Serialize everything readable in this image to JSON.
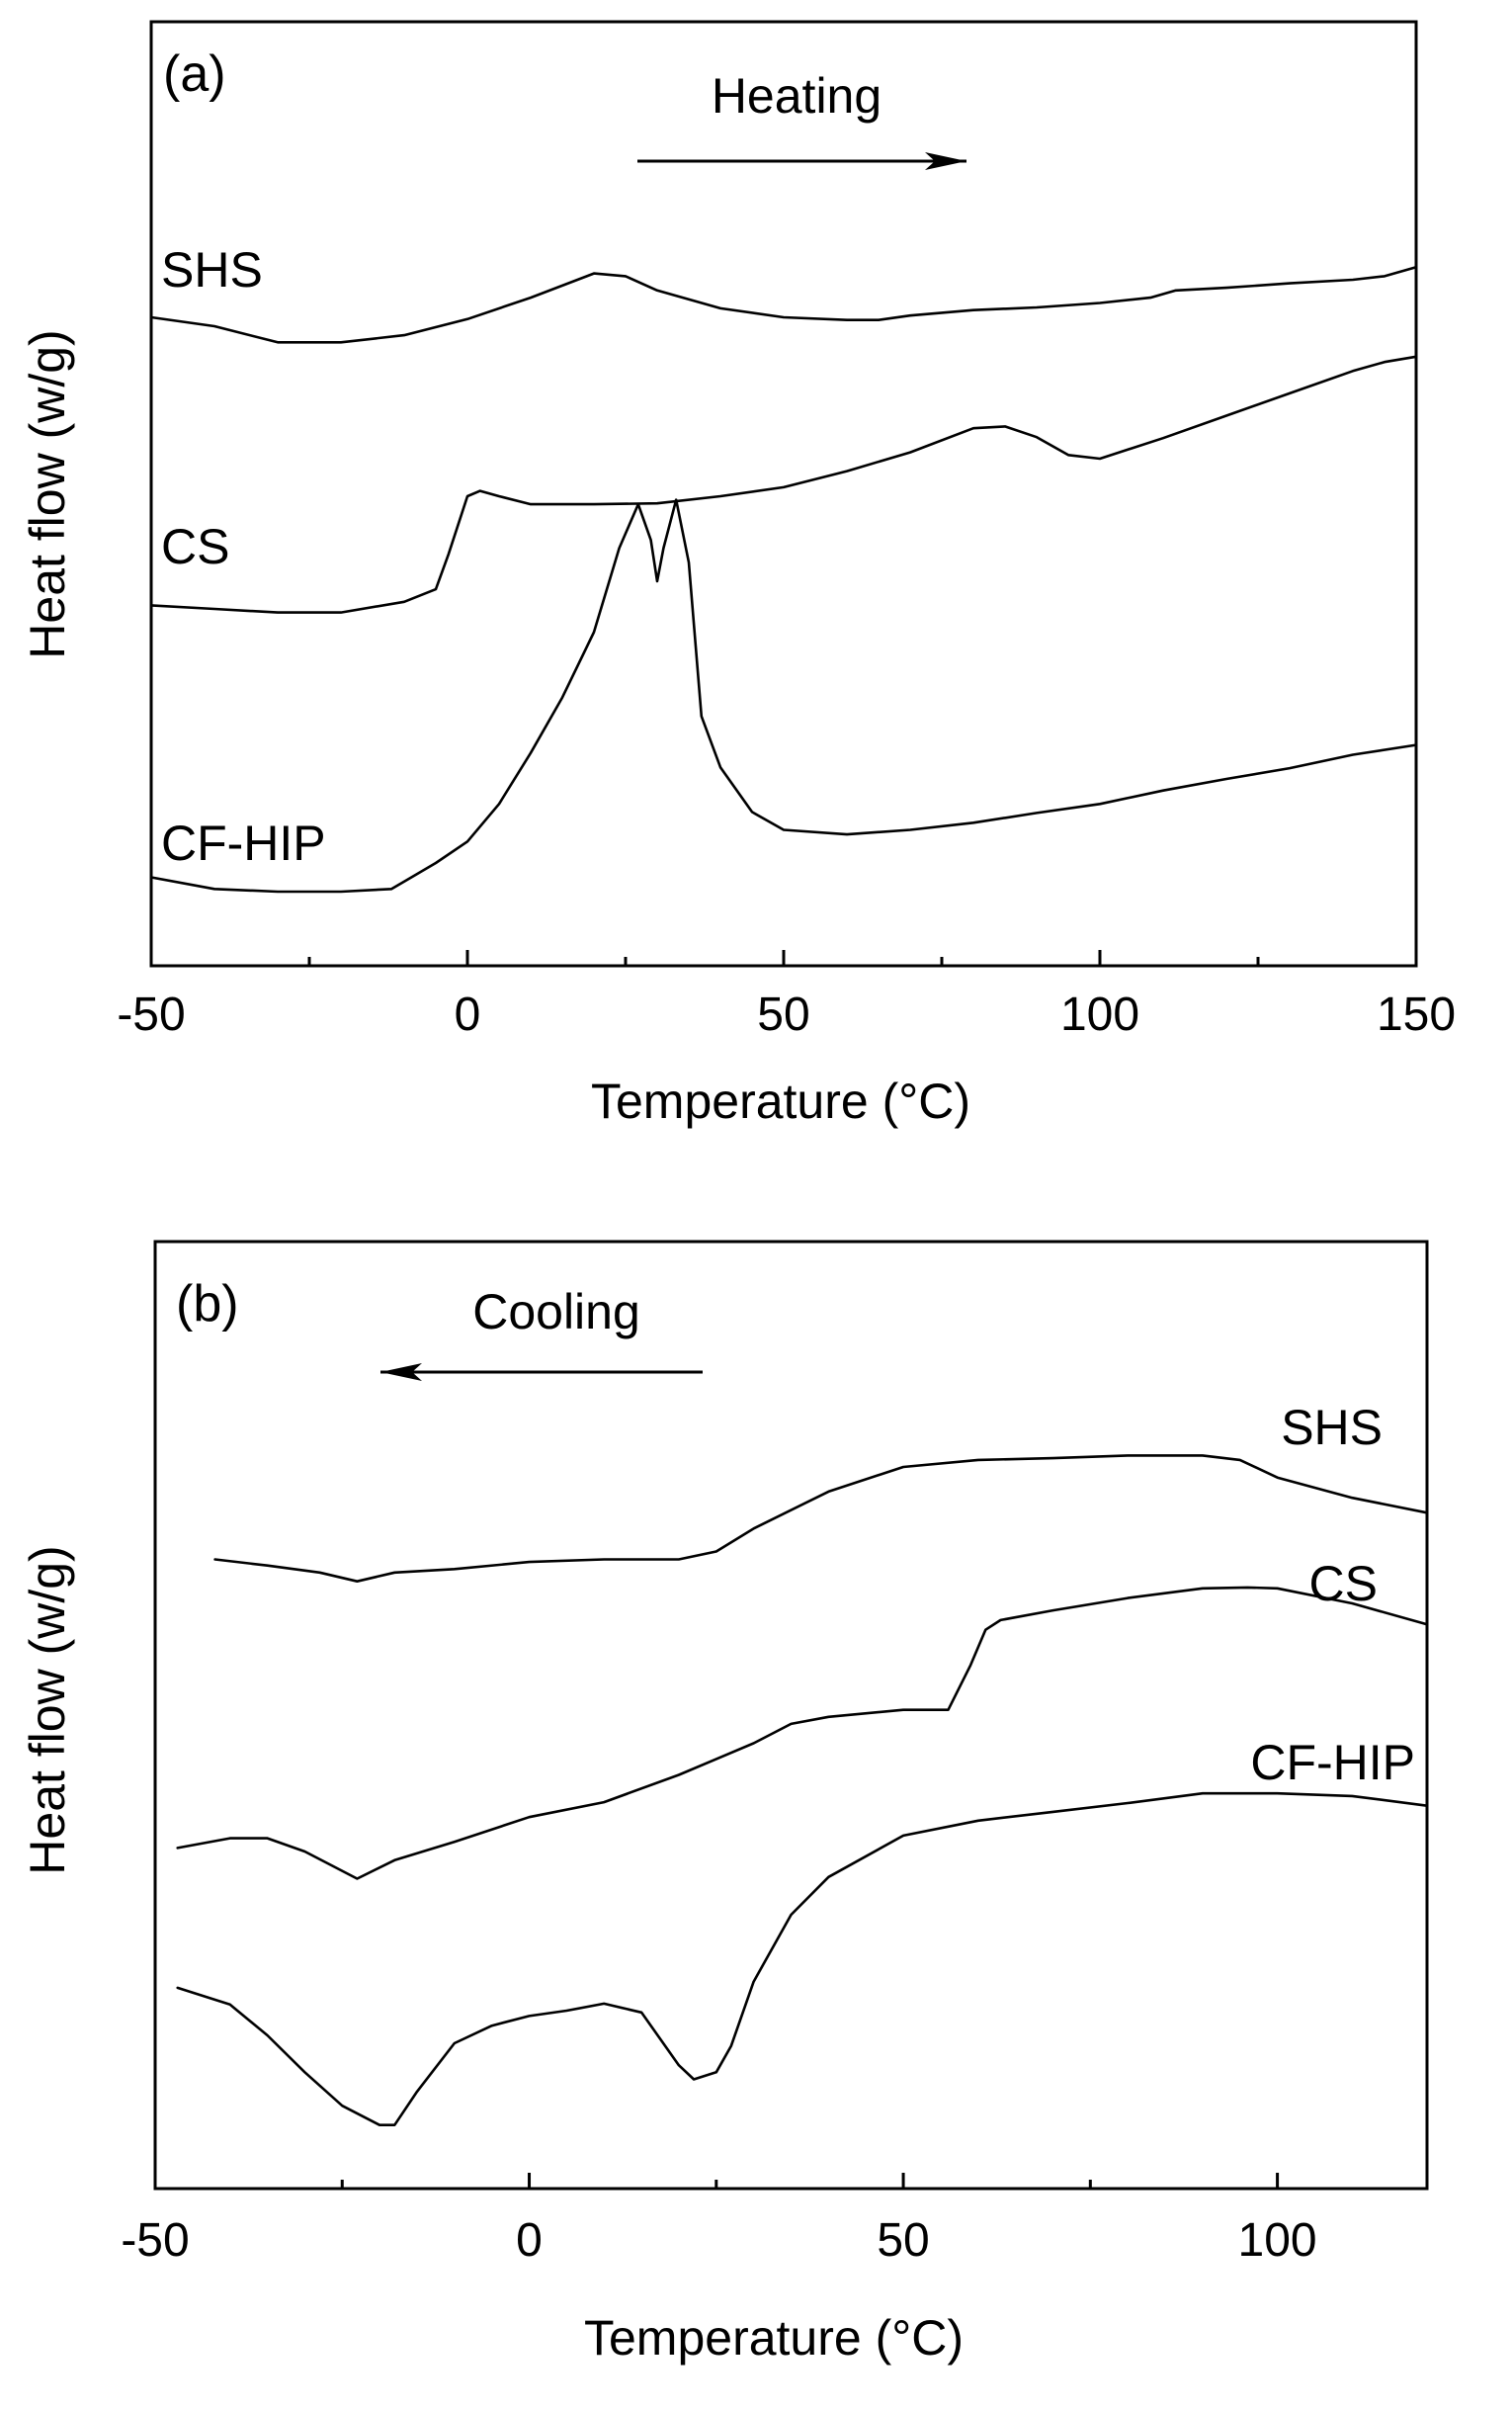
{
  "chart_data": [
    {
      "type": "line",
      "panel": "(a)",
      "direction": {
        "label": "Heating",
        "arrow": "right"
      },
      "xlabel": "Temperature (°C)",
      "ylabel": "Heat flow (w/g)",
      "xlim": [
        -50,
        150
      ],
      "ylim": [
        0,
        1
      ],
      "xticks": [
        -50,
        0,
        50,
        100,
        150
      ],
      "yticks_shown": false,
      "series": [
        {
          "name": "SHS",
          "label": "SHS",
          "x": [
            -50,
            -40,
            -30,
            -20,
            -10,
            0,
            10,
            20,
            25,
            30,
            40,
            50,
            60,
            65,
            70,
            80,
            90,
            100,
            108,
            112,
            120,
            130,
            140,
            145,
            150
          ],
          "y": [
            0.684,
            0.674,
            0.656,
            0.656,
            0.664,
            0.682,
            0.706,
            0.733,
            0.73,
            0.714,
            0.694,
            0.684,
            0.681,
            0.681,
            0.686,
            0.692,
            0.695,
            0.7,
            0.706,
            0.714,
            0.717,
            0.722,
            0.726,
            0.73,
            0.74
          ]
        },
        {
          "name": "CS",
          "label": "CS",
          "x": [
            -50,
            -40,
            -30,
            -20,
            -10,
            -5,
            -3,
            0,
            2,
            5,
            10,
            20,
            30,
            40,
            50,
            60,
            70,
            80,
            85,
            90,
            95,
            100,
            110,
            120,
            130,
            140,
            145,
            150
          ],
          "y": [
            0.362,
            0.358,
            0.354,
            0.354,
            0.366,
            0.38,
            0.419,
            0.484,
            0.49,
            0.484,
            0.475,
            0.475,
            0.476,
            0.484,
            0.494,
            0.512,
            0.533,
            0.56,
            0.562,
            0.55,
            0.53,
            0.526,
            0.549,
            0.574,
            0.599,
            0.624,
            0.634,
            0.64
          ]
        },
        {
          "name": "CF-HIP",
          "label": "CF-HIP",
          "x": [
            -50,
            -40,
            -30,
            -20,
            -12,
            -5,
            0,
            5,
            10,
            15,
            20,
            24,
            27,
            29,
            30,
            31,
            33,
            35,
            37,
            40,
            45,
            50,
            60,
            70,
            80,
            90,
            100,
            110,
            120,
            130,
            140,
            150
          ],
          "y": [
            0.058,
            0.045,
            0.042,
            0.042,
            0.045,
            0.074,
            0.098,
            0.14,
            0.197,
            0.259,
            0.332,
            0.426,
            0.475,
            0.435,
            0.389,
            0.426,
            0.48,
            0.41,
            0.238,
            0.181,
            0.131,
            0.111,
            0.106,
            0.111,
            0.119,
            0.13,
            0.14,
            0.155,
            0.168,
            0.18,
            0.195,
            0.206
          ]
        }
      ]
    },
    {
      "type": "line",
      "panel": "(b)",
      "direction": {
        "label": "Cooling",
        "arrow": "left"
      },
      "xlabel": "Temperature (°C)",
      "ylabel": "Heat flow (w/g)",
      "xlim": [
        -50,
        120
      ],
      "ylim": [
        0,
        1
      ],
      "xticks": [
        -50,
        0,
        50,
        100
      ],
      "yticks_shown": false,
      "series": [
        {
          "name": "SHS",
          "label": "SHS",
          "x": [
            -42,
            -35,
            -28,
            -23,
            -18,
            -10,
            0,
            10,
            20,
            25,
            30,
            40,
            50,
            60,
            70,
            80,
            90,
            95,
            100,
            110,
            120
          ],
          "y": [
            0.677,
            0.67,
            0.662,
            0.652,
            0.662,
            0.666,
            0.674,
            0.677,
            0.677,
            0.686,
            0.712,
            0.754,
            0.782,
            0.79,
            0.792,
            0.795,
            0.795,
            0.79,
            0.77,
            0.747,
            0.73
          ]
        },
        {
          "name": "CS",
          "label": "CS",
          "x": [
            -47,
            -40,
            -35,
            -30,
            -23,
            -18,
            -10,
            0,
            10,
            20,
            30,
            35,
            40,
            50,
            56,
            59,
            61,
            63,
            70,
            80,
            90,
            96,
            100,
            110,
            120
          ],
          "y": [
            0.349,
            0.36,
            0.36,
            0.345,
            0.314,
            0.335,
            0.356,
            0.384,
            0.401,
            0.432,
            0.468,
            0.49,
            0.498,
            0.506,
            0.506,
            0.557,
            0.597,
            0.608,
            0.619,
            0.633,
            0.644,
            0.645,
            0.644,
            0.627,
            0.603
          ]
        },
        {
          "name": "CF-HIP",
          "label": "CF-HIP",
          "x": [
            -47,
            -40,
            -35,
            -30,
            -25,
            -20,
            -18,
            -15,
            -10,
            -5,
            0,
            5,
            10,
            15,
            20,
            22,
            25,
            27,
            30,
            35,
            40,
            50,
            60,
            70,
            80,
            90,
            100,
            110,
            120
          ],
          "y": [
            0.19,
            0.171,
            0.136,
            0.094,
            0.056,
            0.034,
            0.034,
            0.072,
            0.127,
            0.147,
            0.158,
            0.164,
            0.172,
            0.162,
            0.102,
            0.086,
            0.094,
            0.124,
            0.197,
            0.273,
            0.316,
            0.363,
            0.38,
            0.39,
            0.4,
            0.411,
            0.411,
            0.408,
            0.397
          ]
        }
      ]
    }
  ]
}
